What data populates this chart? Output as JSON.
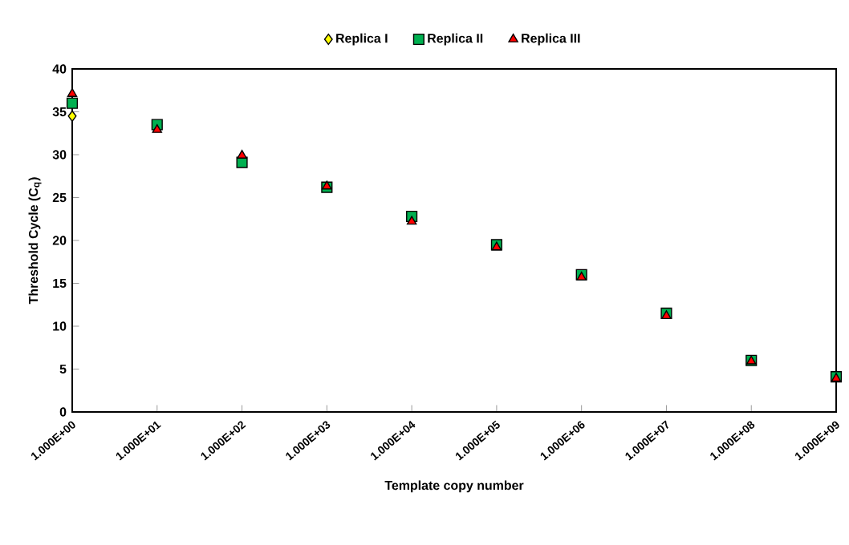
{
  "chart_data": {
    "type": "scatter",
    "xlabel": "Template copy number",
    "ylabel": "Threshold Cycle (C$_{q}$)",
    "log": "x",
    "xlim": [
      1,
      1000000000
    ],
    "ylim": [
      0,
      40
    ],
    "yticks": [
      0,
      5,
      10,
      15,
      20,
      25,
      30,
      35,
      40
    ],
    "xticks": [
      {
        "value": 1,
        "label": "1.000E+00"
      },
      {
        "value": 10,
        "label": "1.000E+01"
      },
      {
        "value": 100,
        "label": "1.000E+02"
      },
      {
        "value": 1000,
        "label": "1.000E+03"
      },
      {
        "value": 10000,
        "label": "1.000E+04"
      },
      {
        "value": 100000,
        "label": "1.000E+05"
      },
      {
        "value": 1000000,
        "label": "1.000E+06"
      },
      {
        "value": 10000000,
        "label": "1.000E+07"
      },
      {
        "value": 100000000,
        "label": "1.000E+08"
      },
      {
        "value": 1000000000,
        "label": "1.000E+09"
      }
    ],
    "x": [
      1,
      10,
      100,
      1000,
      10000,
      100000,
      1000000,
      10000000,
      100000000,
      1000000000
    ],
    "grid": false,
    "legend": "top",
    "series": [
      {
        "name": "Replica I",
        "color": "#ffff00",
        "marker": "diamond",
        "values": [
          34.5,
          null,
          null,
          null,
          null,
          null,
          null,
          null,
          null,
          null
        ]
      },
      {
        "name": "Replica II",
        "color": "#00b050",
        "marker": "square",
        "values": [
          36.0,
          33.5,
          29.1,
          26.2,
          22.8,
          19.5,
          16.0,
          11.5,
          6.0,
          4.1
        ]
      },
      {
        "name": "Replica III",
        "color": "#ff0000",
        "marker": "triangle",
        "values": [
          37.1,
          32.9,
          29.9,
          26.3,
          22.2,
          19.2,
          15.7,
          11.2,
          5.9,
          3.9
        ]
      }
    ]
  }
}
